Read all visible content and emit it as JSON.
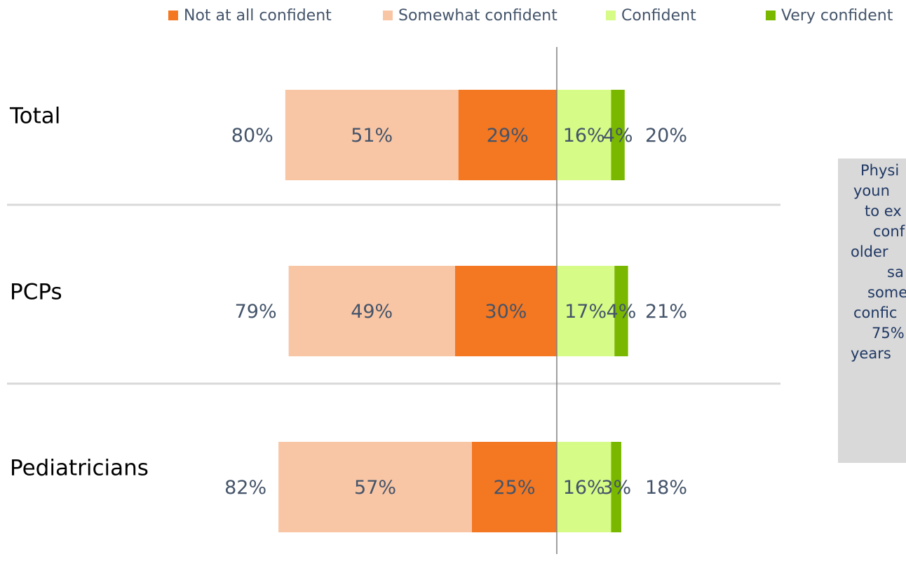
{
  "chart_data": {
    "type": "diverging_bar",
    "categories": [
      "Total",
      "PCPs",
      "Pediatricians"
    ],
    "series": [
      {
        "name": "Not at all confident",
        "color": "#f47721",
        "side": "left",
        "values": [
          29,
          30,
          25
        ],
        "value_labels": [
          "29%",
          "30%",
          "25%"
        ]
      },
      {
        "name": "Somewhat confident",
        "color": "#f9c6a5",
        "side": "left",
        "values": [
          51,
          49,
          57
        ],
        "value_labels": [
          "51%",
          "49%",
          "57%"
        ]
      },
      {
        "name": "Confident",
        "color": "#d6fb86",
        "side": "right",
        "values": [
          16,
          17,
          16
        ],
        "value_labels": [
          "16%",
          "17%",
          "16%"
        ]
      },
      {
        "name": "Very confident",
        "color": "#7ab800",
        "side": "right",
        "values": [
          4,
          4,
          3
        ],
        "value_labels": [
          "4%",
          "4%",
          "3%"
        ]
      }
    ],
    "left_totals": [
      80,
      79,
      82
    ],
    "left_total_labels": [
      "80%",
      "79%",
      "82%"
    ],
    "right_totals": [
      20,
      21,
      18
    ],
    "right_total_labels": [
      "20%",
      "21%",
      "18%"
    ],
    "note_lines": [
      "Physi",
      "youn",
      "to ex",
      "conf",
      "older",
      "sa",
      "some",
      "confic",
      "75%",
      "years"
    ]
  }
}
